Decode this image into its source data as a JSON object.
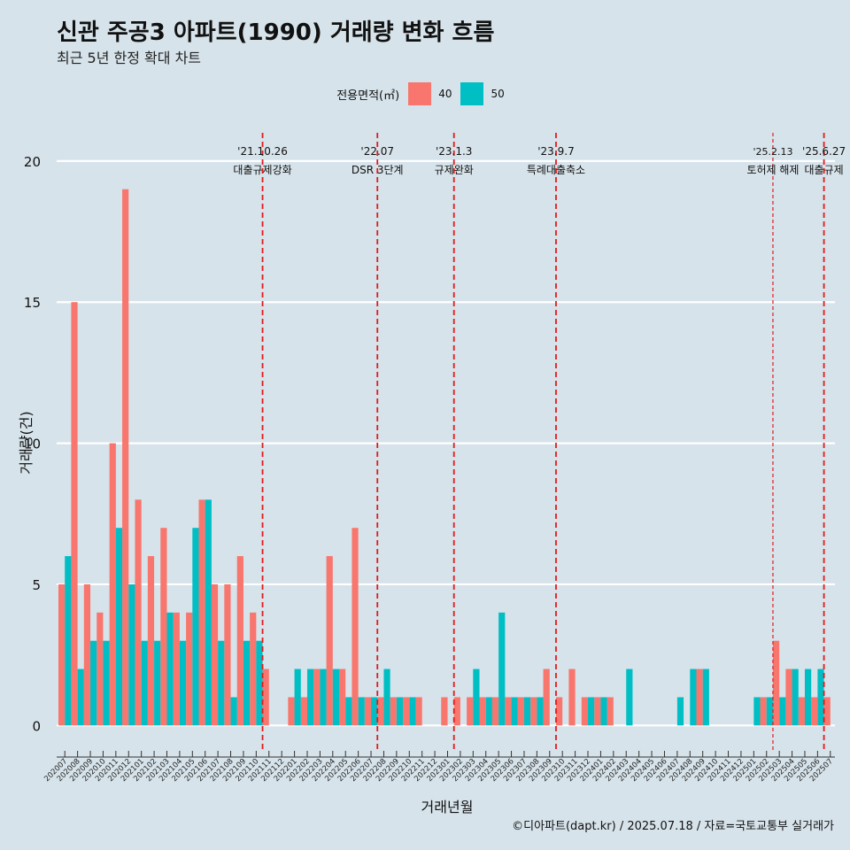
{
  "title": "신관 주공3 아파트(1990) 거래량 변화 흐름",
  "subtitle": "최근 5년 한정 확대 차트",
  "caption": "©디아파트(dapt.kr) / 2025.07.18 / 자료=국토교통부 실거래가",
  "legend": {
    "title": "전용면적(㎡)",
    "items": [
      {
        "label": "40",
        "color": "#f8766d"
      },
      {
        "label": "50",
        "color": "#00bfc4"
      }
    ]
  },
  "chart_data": {
    "type": "bar",
    "title": "신관 주공3 아파트(1990) 거래량 변화 흐름",
    "xlabel": "거래년월",
    "ylabel": "거래량(건)",
    "ylim": [
      -0.9,
      21
    ],
    "yticks": [
      0,
      5,
      10,
      15,
      20
    ],
    "grid": true,
    "legend_position": "top",
    "categories": [
      "202007",
      "202008",
      "202009",
      "202010",
      "202011",
      "202012",
      "202101",
      "202102",
      "202103",
      "202104",
      "202105",
      "202106",
      "202107",
      "202108",
      "202109",
      "202110",
      "202111",
      "202112",
      "202201",
      "202202",
      "202203",
      "202204",
      "202205",
      "202206",
      "202207",
      "202208",
      "202209",
      "202210",
      "202211",
      "202212",
      "202301",
      "202302",
      "202303",
      "202304",
      "202305",
      "202306",
      "202307",
      "202308",
      "202309",
      "202310",
      "202311",
      "202312",
      "202401",
      "202402",
      "202403",
      "202404",
      "202405",
      "202406",
      "202407",
      "202408",
      "202409",
      "202410",
      "202411",
      "202412",
      "202501",
      "202502",
      "202503",
      "202504",
      "202505",
      "202506",
      "202507"
    ],
    "series": [
      {
        "name": "40",
        "color": "#f8766d",
        "values": [
          5,
          15,
          5,
          4,
          10,
          19,
          8,
          6,
          7,
          4,
          4,
          8,
          5,
          5,
          6,
          4,
          2,
          0,
          1,
          1,
          2,
          6,
          2,
          7,
          1,
          1,
          1,
          1,
          1,
          0,
          1,
          1,
          1,
          1,
          1,
          1,
          1,
          1,
          2,
          1,
          2,
          1,
          1,
          1,
          0,
          0,
          0,
          0,
          0,
          0,
          2,
          0,
          0,
          0,
          0,
          1,
          3,
          2,
          1,
          1,
          1
        ]
      },
      {
        "name": "50",
        "color": "#00bfc4",
        "values": [
          6,
          2,
          3,
          3,
          7,
          5,
          3,
          3,
          4,
          3,
          7,
          8,
          3,
          1,
          3,
          3,
          0,
          0,
          2,
          2,
          2,
          2,
          1,
          1,
          1,
          2,
          1,
          1,
          0,
          0,
          0,
          0,
          2,
          1,
          4,
          1,
          1,
          1,
          0,
          0,
          0,
          1,
          1,
          0,
          2,
          0,
          0,
          0,
          1,
          2,
          2,
          0,
          0,
          0,
          1,
          1,
          1,
          2,
          2,
          2,
          0
        ]
      }
    ],
    "events": [
      {
        "date": "'21.10.26",
        "label": "대출규제강화",
        "after": "202110",
        "style": "dashed"
      },
      {
        "date": "'22.07",
        "label": "DSR 3단계",
        "after": "202207",
        "style": "dashed"
      },
      {
        "date": "'23.1.3",
        "label": "규제완화",
        "after": "202301",
        "style": "dashed"
      },
      {
        "date": "'23.9.7",
        "label": "특례대출축소",
        "after": "202309",
        "style": "dashed"
      },
      {
        "date": "'25.2.13",
        "label": "토허제 해제",
        "after": "202502",
        "style": "dashed-thin"
      },
      {
        "date": "'25.6.27",
        "label": "대출규제",
        "after": "202506",
        "style": "dashed"
      }
    ]
  }
}
